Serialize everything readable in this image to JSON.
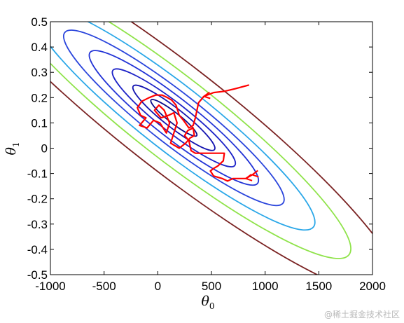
{
  "chart_data": {
    "type": "contour",
    "title": "",
    "xlabel": {
      "symbol": "θ",
      "subscript": "0"
    },
    "ylabel": {
      "symbol": "θ",
      "subscript": "1"
    },
    "xlim": [
      -1000,
      2000
    ],
    "ylim": [
      -0.5,
      0.5
    ],
    "xticks": [
      "-1000",
      "-500",
      "0",
      "500",
      "1000",
      "1500",
      "2000"
    ],
    "yticks": [
      "0.5",
      "0.4",
      "0.3",
      "0.2",
      "0.1",
      "0",
      "-0.1",
      "-0.2",
      "-0.3",
      "-0.4",
      "-0.5"
    ],
    "grid": false,
    "contours": {
      "center": [
        150,
        0.12
      ],
      "color_order": [
        "#0a0a8a",
        "#1414b0",
        "#1e24c8",
        "#2233d6",
        "#2a45dc",
        "#2aa7e8",
        "#8fe34a",
        "#7a2222"
      ],
      "levels": [
        {
          "scale": 0.45,
          "color": "#0a0a8a"
        },
        {
          "scale": 0.8,
          "color": "#1414b0"
        },
        {
          "scale": 1.2,
          "color": "#1e24c8"
        },
        {
          "scale": 1.65,
          "color": "#2233d6"
        },
        {
          "scale": 2.15,
          "color": "#2a45dc"
        },
        {
          "scale": 2.75,
          "color": "#2aa7e8"
        },
        {
          "scale": 3.45,
          "color": "#8fe34a"
        },
        {
          "scale": 4.4,
          "color": "#7a2222"
        }
      ]
    },
    "trajectory": {
      "color": "#ff0000",
      "points": [
        [
          850,
          0.25
        ],
        [
          720,
          0.235
        ],
        [
          620,
          0.225
        ],
        [
          520,
          0.22
        ],
        [
          430,
          0.205
        ],
        [
          380,
          0.18
        ],
        [
          350,
          0.12
        ],
        [
          330,
          0.09
        ],
        [
          290,
          0.08
        ],
        [
          240,
          0.11
        ],
        [
          200,
          0.13
        ],
        [
          170,
          0.17
        ],
        [
          130,
          0.19
        ],
        [
          90,
          0.2
        ],
        [
          40,
          0.21
        ],
        [
          -20,
          0.21
        ],
        [
          -80,
          0.2
        ],
        [
          -150,
          0.185
        ],
        [
          -190,
          0.16
        ],
        [
          -160,
          0.13
        ],
        [
          -110,
          0.12
        ],
        [
          -170,
          0.09
        ],
        [
          -100,
          0.08
        ],
        [
          -40,
          0.11
        ],
        [
          20,
          0.1
        ],
        [
          80,
          0.06
        ],
        [
          110,
          0.1
        ],
        [
          60,
          0.15
        ],
        [
          10,
          0.17
        ],
        [
          -30,
          0.15
        ],
        [
          30,
          0.12
        ],
        [
          100,
          0.13
        ],
        [
          150,
          0.14
        ],
        [
          180,
          0.1
        ],
        [
          150,
          0.06
        ],
        [
          120,
          0.02
        ],
        [
          200,
          0.0
        ],
        [
          260,
          0.02
        ],
        [
          300,
          0.04
        ],
        [
          340,
          0.05
        ],
        [
          330,
          0.08
        ],
        [
          280,
          0.07
        ],
        [
          250,
          0.05
        ],
        [
          290,
          0.03
        ],
        [
          310,
          -0.01
        ],
        [
          350,
          -0.02
        ],
        [
          400,
          -0.02
        ],
        [
          480,
          -0.02
        ],
        [
          560,
          -0.02
        ],
        [
          620,
          -0.02
        ],
        [
          610,
          -0.05
        ],
        [
          560,
          -0.07
        ],
        [
          520,
          -0.08
        ],
        [
          490,
          -0.09
        ],
        [
          520,
          -0.11
        ],
        [
          600,
          -0.12
        ],
        [
          650,
          -0.13
        ],
        [
          700,
          -0.12
        ],
        [
          760,
          -0.12
        ],
        [
          820,
          -0.12
        ],
        [
          880,
          -0.105
        ]
      ],
      "arrow_heads": [
        [
          430,
          0.205
        ],
        [
          880,
          -0.105
        ],
        [
          820,
          -0.12
        ]
      ]
    }
  },
  "watermark": "@稀土掘金技术社区"
}
